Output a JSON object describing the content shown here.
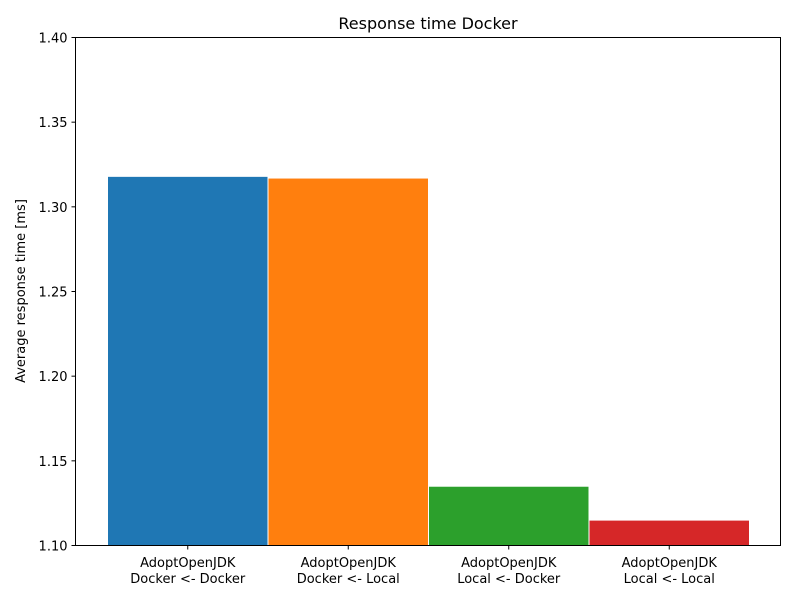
{
  "chart_data": {
    "type": "bar",
    "title": "Response time Docker",
    "xlabel": "",
    "ylabel": "Average response time [ms]",
    "ylim": [
      1.1,
      1.4
    ],
    "yticks": [
      "1.10",
      "1.15",
      "1.20",
      "1.25",
      "1.30",
      "1.35",
      "1.40"
    ],
    "grid": false,
    "categories": [
      [
        "AdoptOpenJDK",
        "Docker <- Docker"
      ],
      [
        "AdoptOpenJDK",
        "Docker <- Local"
      ],
      [
        "AdoptOpenJDK",
        "Local <- Docker"
      ],
      [
        "AdoptOpenJDK",
        "Local <- Local"
      ]
    ],
    "values": [
      1.318,
      1.317,
      1.135,
      1.115
    ],
    "colors": [
      "#1f77b4",
      "#ff7f0e",
      "#2ca02c",
      "#d62728"
    ]
  }
}
